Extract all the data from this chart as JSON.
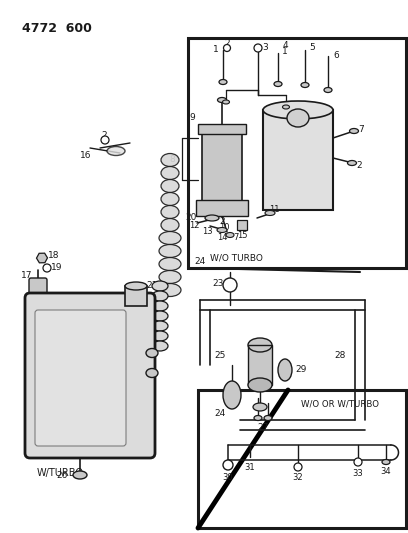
{
  "bg_color": "#ffffff",
  "lc": "#1a1a1a",
  "gc": "#c8c8c8",
  "title": "4772  600",
  "box1_label": "W/O TURBO",
  "box2_label": "W/O OR W/TURBO",
  "main_label": "W/TURBO"
}
